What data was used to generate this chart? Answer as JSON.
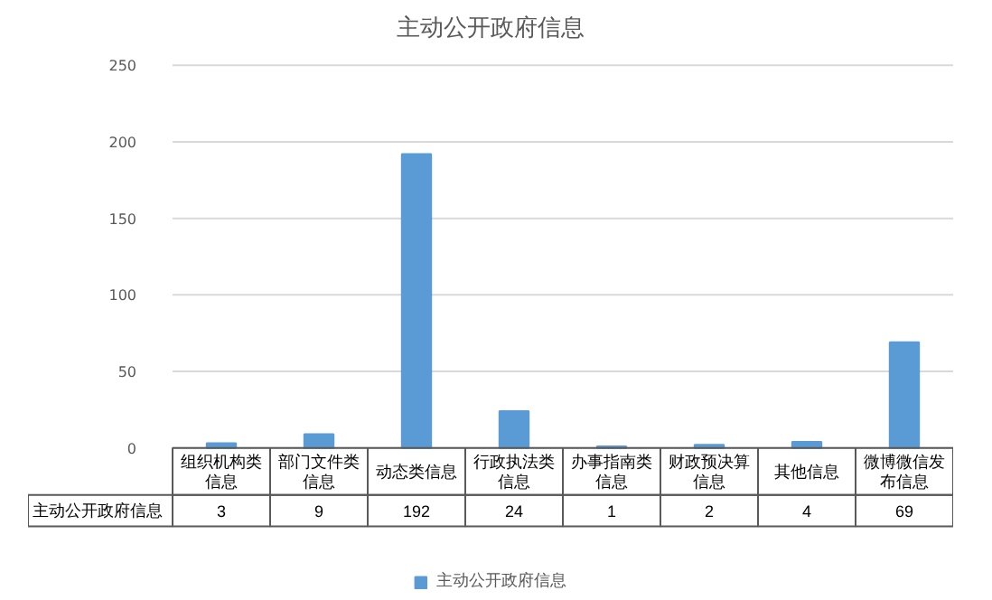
{
  "chart_data": {
    "type": "bar",
    "title": "主动公开政府信息",
    "categories": [
      "组织机构类信息",
      "部门文件类信息",
      "动态类信息",
      "行政执法类信息",
      "办事指南类信息",
      "财政预决算信息",
      "其他信息",
      "微博微信发布信息"
    ],
    "series": [
      {
        "name": "主动公开政府信息",
        "color": "#5b9bd5",
        "values": [
          3,
          9,
          192,
          24,
          1,
          2,
          4,
          69
        ]
      }
    ],
    "ylim": [
      0,
      250
    ],
    "yticks": [
      0,
      50,
      100,
      150,
      200,
      250
    ],
    "grid": "y",
    "legend": "bottom",
    "data_labels": true
  }
}
